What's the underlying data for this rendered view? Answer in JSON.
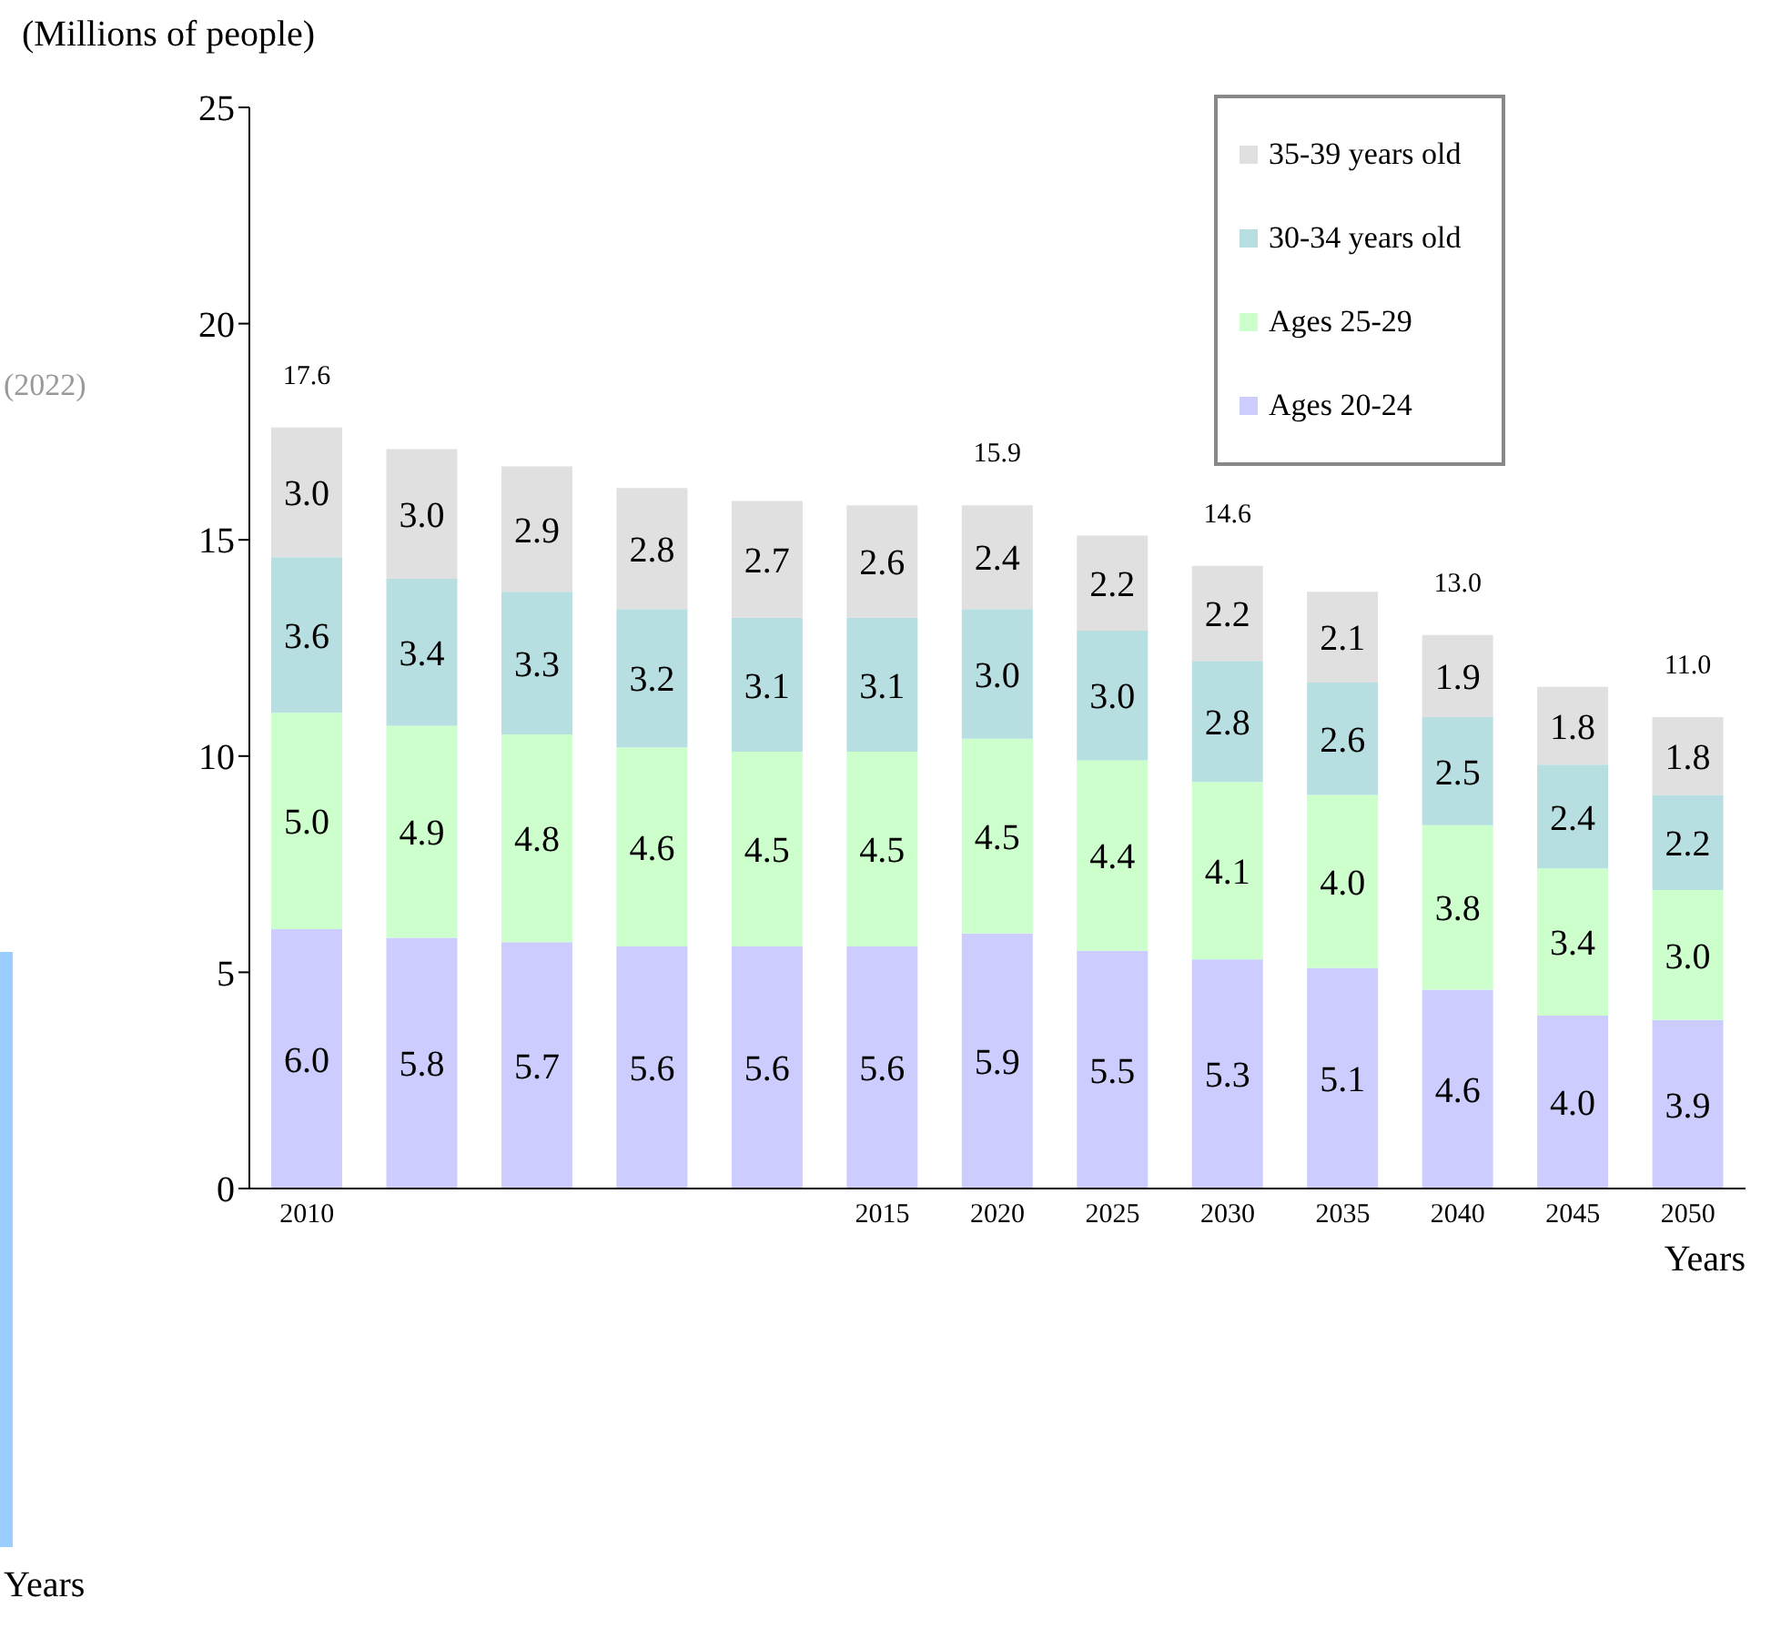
{
  "chart_data": {
    "type": "bar",
    "stacked": true,
    "ylabel": "(Millions of people)",
    "xlabel": "Years",
    "categories": [
      "2010",
      null,
      null,
      null,
      null,
      "2015",
      "2020",
      "2025",
      "2030",
      "2035",
      "2040",
      "2045",
      "2050"
    ],
    "series": [
      {
        "name": "Ages 20-24",
        "color": "#ccccff",
        "values": [
          6.0,
          5.8,
          5.7,
          5.6,
          5.6,
          5.6,
          5.9,
          5.5,
          5.3,
          5.1,
          4.6,
          4.0,
          3.9
        ],
        "value_labels": [
          "6.0",
          "5.8",
          "5.7",
          "5.6",
          "5.6",
          "5.6",
          "5.9",
          "5.5",
          "5.3",
          "5.1",
          "4.6",
          "4.0",
          "3.9"
        ]
      },
      {
        "name": "Ages 25-29",
        "color": "#ccffcc",
        "values": [
          5.0,
          4.9,
          4.8,
          4.6,
          4.5,
          4.5,
          4.5,
          4.4,
          4.1,
          4.0,
          3.8,
          3.4,
          3.0
        ],
        "value_labels": [
          "5.0",
          "4.9",
          "4.8",
          "4.6",
          "4.5",
          "4.5",
          "4.5",
          "4.4",
          "4.1",
          "4.0",
          "3.8",
          "3.4",
          "3.0"
        ]
      },
      {
        "name": "30-34 years old",
        "color": "#b7dfe2",
        "values": [
          3.6,
          3.4,
          3.3,
          3.2,
          3.1,
          3.1,
          3.0,
          3.0,
          2.8,
          2.6,
          2.5,
          2.4,
          2.2
        ],
        "value_labels": [
          "3.6",
          "3.4",
          "3.3",
          "3.2",
          "3.1",
          "3.1",
          "3.0",
          "3.0",
          "2.8",
          "2.6",
          "2.5",
          "2.4",
          "2.2"
        ]
      },
      {
        "name": "35-39 years old",
        "color": "#e0e0e0",
        "values": [
          3.0,
          3.0,
          2.9,
          2.8,
          2.7,
          2.6,
          2.4,
          2.2,
          2.2,
          2.1,
          1.9,
          1.8,
          1.8
        ],
        "value_labels": [
          "3.0",
          "3.0",
          "2.9",
          "2.8",
          "2.7",
          "2.6",
          "2.4",
          "2.2",
          "2.2",
          "2.1",
          "1.9",
          "1.8",
          "1.8"
        ]
      }
    ],
    "totals": [
      "17.6",
      null,
      null,
      null,
      null,
      null,
      "15.9",
      null,
      "14.6",
      null,
      "13.0",
      null,
      "11.0"
    ],
    "ylim": [
      0,
      25
    ],
    "yticks": [
      0,
      5,
      10,
      15,
      20,
      25
    ],
    "grid": false,
    "legend": "top right",
    "annotations": [
      "(2022)",
      "Years"
    ]
  }
}
